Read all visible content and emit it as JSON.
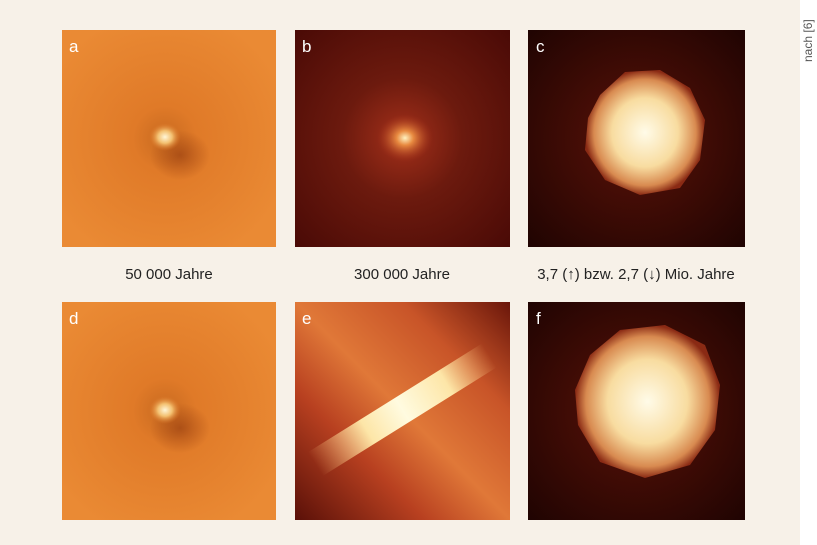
{
  "panels": [
    {
      "label": "a"
    },
    {
      "label": "b"
    },
    {
      "label": "c"
    },
    {
      "label": "d"
    },
    {
      "label": "e"
    },
    {
      "label": "f"
    }
  ],
  "captions": [
    "50 000 Jahre",
    "300 000 Jahre",
    "3,7 (↑) bzw. 2,7 (↓) Mio. Jahre"
  ],
  "source": "nach [6]"
}
